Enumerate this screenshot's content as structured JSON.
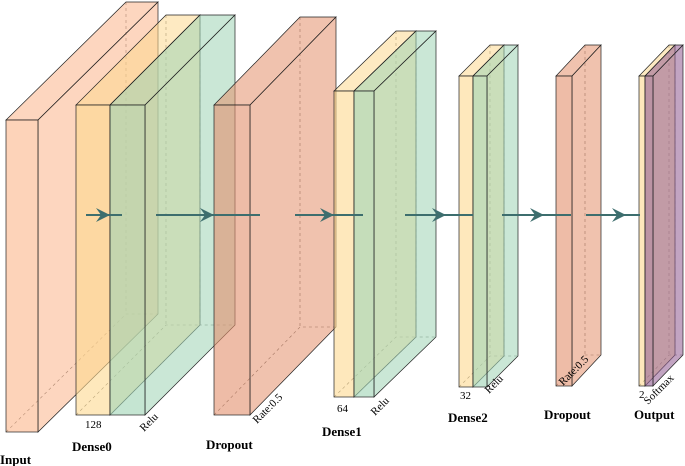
{
  "layers": [
    {
      "label": "Input"
    },
    {
      "label": "Dense0",
      "size": "128",
      "activation": "Relu"
    },
    {
      "label": "Dropout",
      "rate": "Rate:0.5"
    },
    {
      "label": "Dense1",
      "size": "64",
      "activation": "Relu"
    },
    {
      "label": "Dense2",
      "size": "32",
      "activation": "Relu"
    },
    {
      "label": "Dropout",
      "rate": "Rate:0.5"
    },
    {
      "label": "Output",
      "size": "2",
      "activation": "Softmax"
    }
  ]
}
